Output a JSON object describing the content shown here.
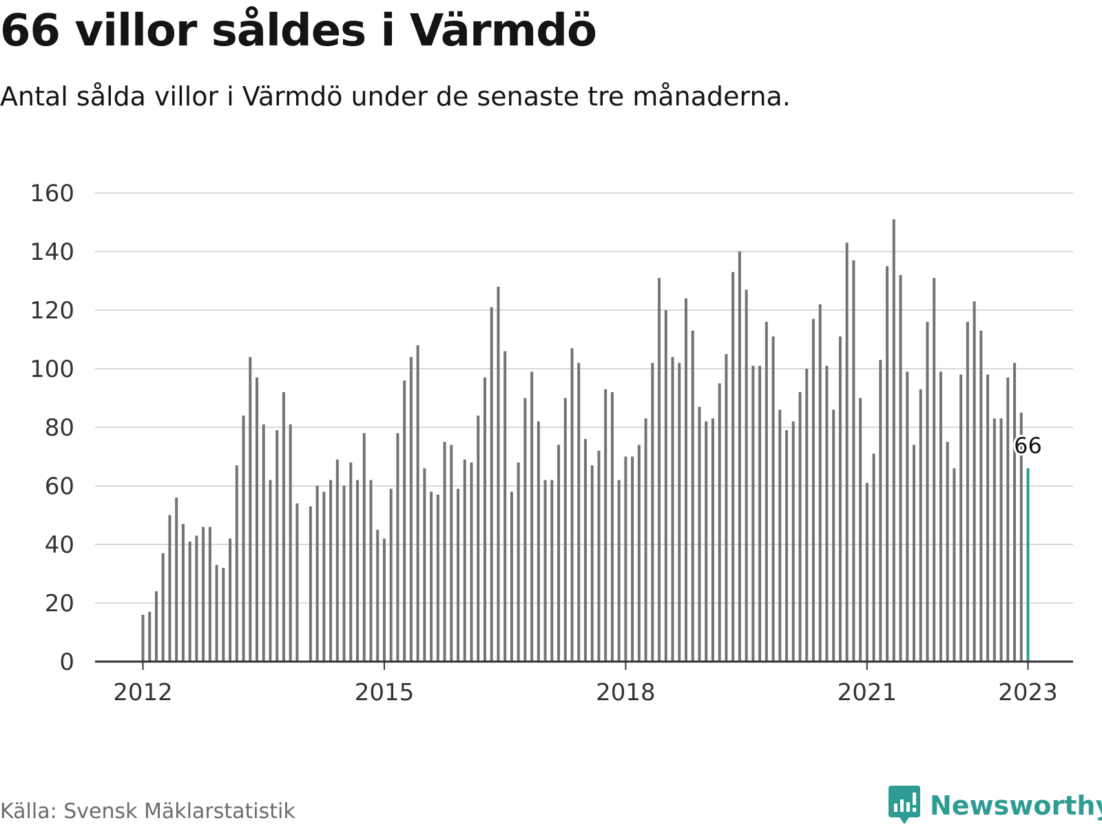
{
  "header": {
    "title": "66 villor såldes i Värmdö",
    "subtitle": "Antal sålda villor i Värmdö under de senaste tre månaderna."
  },
  "footer": {
    "source": "Källa: Svensk Mäklarstatistik",
    "brand": "Newsworthy",
    "brand_icon": "bar-chart-speech-bubble-icon"
  },
  "colors": {
    "bar": "#737373",
    "highlight": "#2a9d8f",
    "grid": "#d9d9d9",
    "axis": "#333333",
    "brand": "#2f9c93"
  },
  "chart_data": {
    "type": "bar",
    "title": "66 villor såldes i Värmdö",
    "subtitle": "Antal sålda villor i Värmdö under de senaste tre månaderna.",
    "xlabel": "",
    "ylabel": "",
    "ylim": [
      0,
      160
    ],
    "yticks": [
      0,
      20,
      40,
      60,
      80,
      100,
      120,
      140,
      160
    ],
    "x_tick_labels": [
      "2012",
      "2015",
      "2018",
      "2021",
      "2023"
    ],
    "grid": true,
    "series": [
      {
        "values": [
          16,
          17,
          24,
          37,
          50,
          56,
          47,
          41,
          43,
          46,
          46,
          33,
          32,
          42,
          67,
          84,
          104,
          97,
          81,
          62,
          79,
          92,
          81,
          54,
          null,
          53,
          60,
          58,
          62,
          69,
          60,
          68,
          62,
          78,
          62,
          45,
          42,
          59,
          78,
          96,
          104,
          108,
          66,
          58,
          57,
          75,
          74,
          59,
          69,
          68,
          84,
          97,
          121,
          128,
          106,
          58,
          68,
          90,
          99,
          82,
          62,
          62,
          74,
          90,
          107,
          102,
          76,
          67,
          72,
          93,
          92,
          62,
          70,
          70,
          74,
          83,
          102,
          131,
          120,
          104,
          102,
          124,
          113,
          87,
          82,
          83,
          95,
          105,
          133,
          140,
          127,
          101,
          101,
          116,
          111,
          86,
          79,
          82,
          92,
          100,
          117,
          122,
          101,
          86,
          111,
          143,
          137,
          90,
          61,
          71,
          103,
          135,
          151,
          132,
          99,
          74,
          93,
          116,
          131,
          99,
          75,
          66,
          98,
          116,
          123,
          113,
          98,
          83,
          83,
          97,
          102,
          85,
          66
        ]
      }
    ],
    "x_start": "2012-01",
    "x_end": "2023-01",
    "highlight": {
      "label": "66",
      "value": 66
    }
  }
}
